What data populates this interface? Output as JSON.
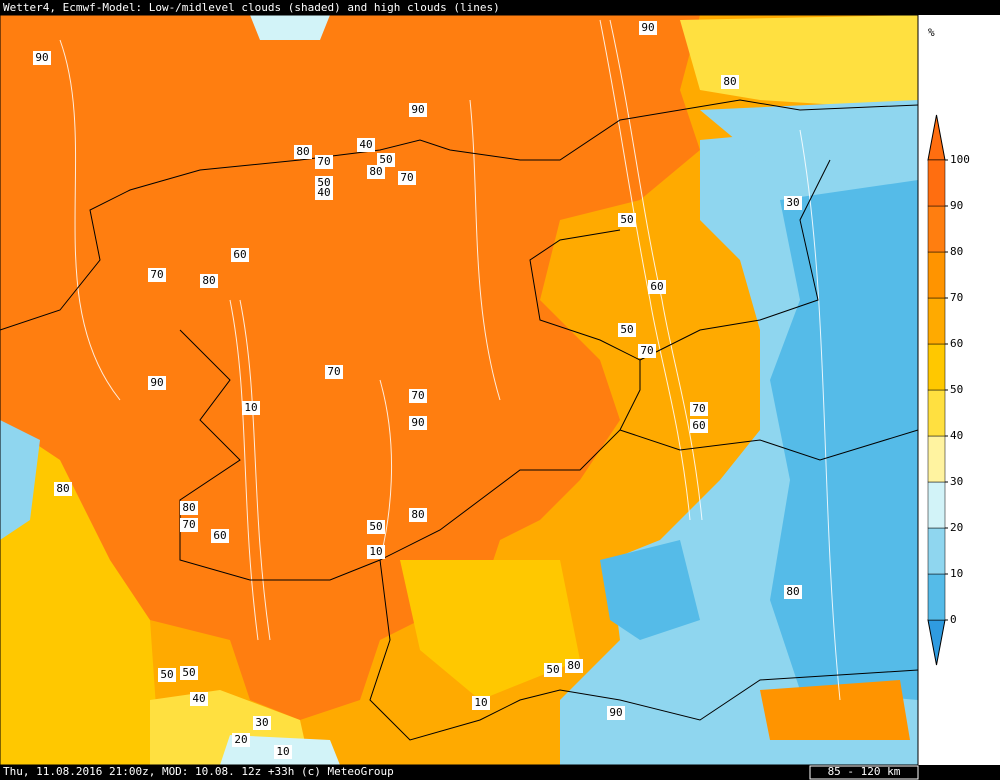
{
  "header": {
    "title": "Wetter4, Ecmwf-Model: Low-/midlevel clouds (shaded) and high clouds (lines)"
  },
  "footer": {
    "text": "Thu, 11.08.2016 21:00z, MOD: 10.08. 12z +33h (c) MeteoGroup",
    "scale": "85 - 120 km"
  },
  "colorbar": {
    "unit": "%",
    "levels": [
      0,
      10,
      20,
      30,
      40,
      50,
      60,
      70,
      80,
      90,
      100
    ],
    "colors": [
      "#2f9be0",
      "#55bbe8",
      "#8fd6ef",
      "#d2f3f8",
      "#fff3a0",
      "#ffe040",
      "#ffc800",
      "#ffaa00",
      "#ff9400",
      "#ff7e10",
      "#ff6e10",
      "#ff6e10"
    ]
  },
  "contour_labels": [
    "90",
    "90",
    "80",
    "90",
    "40",
    "50",
    "80",
    "70",
    "80",
    "70",
    "50",
    "40",
    "30",
    "50",
    "60",
    "70",
    "80",
    "60",
    "50",
    "70",
    "70",
    "90",
    "70",
    "10",
    "70",
    "90",
    "60",
    "80",
    "80",
    "80",
    "70",
    "50",
    "60",
    "10",
    "80",
    "50",
    "50",
    "50",
    "80",
    "40",
    "10",
    "90",
    "30",
    "20",
    "10"
  ]
}
